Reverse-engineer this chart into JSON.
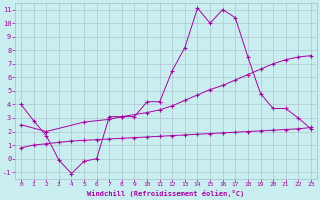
{
  "xlabel": "Windchill (Refroidissement éolien,°C)",
  "xlim": [
    -0.5,
    23.5
  ],
  "ylim": [
    -1.5,
    11.5
  ],
  "xticks": [
    0,
    1,
    2,
    3,
    4,
    5,
    6,
    7,
    8,
    9,
    10,
    11,
    12,
    13,
    14,
    15,
    16,
    17,
    18,
    19,
    20,
    21,
    22,
    23
  ],
  "yticks": [
    -1,
    0,
    1,
    2,
    3,
    4,
    5,
    6,
    7,
    8,
    9,
    10,
    11
  ],
  "bg_color": "#c8eef0",
  "line_color": "#aa00aa",
  "grid_color": "#aabbcc",
  "line1_x": [
    0,
    1,
    2,
    3,
    4,
    5,
    6,
    7,
    8,
    9,
    10,
    11,
    12,
    13,
    14,
    15,
    16,
    17,
    18,
    19,
    20,
    21,
    22,
    23
  ],
  "line1_y": [
    4.0,
    2.8,
    1.7,
    -0.1,
    -1.1,
    -0.2,
    0.0,
    3.1,
    3.1,
    3.1,
    4.2,
    4.2,
    6.5,
    8.2,
    11.1,
    10.0,
    11.0,
    10.4,
    7.5,
    4.8,
    3.7,
    3.7,
    3.0,
    2.2
  ],
  "line2_x": [
    0,
    2,
    5,
    7,
    8,
    10,
    11,
    12,
    13,
    14,
    15,
    16,
    17,
    18,
    19,
    20,
    21,
    22,
    23
  ],
  "line2_y": [
    2.5,
    2.0,
    2.7,
    2.9,
    3.1,
    3.4,
    3.6,
    3.9,
    4.3,
    4.7,
    5.1,
    5.4,
    5.8,
    6.2,
    6.6,
    7.0,
    7.3,
    7.5,
    7.6
  ],
  "line3_x": [
    0,
    1,
    2,
    3,
    4,
    5,
    6,
    7,
    8,
    9,
    10,
    11,
    12,
    13,
    14,
    15,
    16,
    17,
    18,
    19,
    20,
    21,
    22,
    23
  ],
  "line3_y": [
    0.8,
    1.0,
    1.1,
    1.2,
    1.3,
    1.35,
    1.4,
    1.45,
    1.5,
    1.55,
    1.6,
    1.65,
    1.7,
    1.75,
    1.8,
    1.85,
    1.9,
    1.95,
    2.0,
    2.05,
    2.1,
    2.15,
    2.2,
    2.3
  ]
}
